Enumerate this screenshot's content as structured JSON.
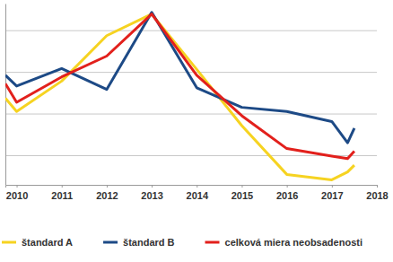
{
  "chart_data": {
    "type": "line",
    "x": [
      2009.75,
      2010,
      2011,
      2012,
      2013,
      2014,
      2015,
      2016,
      2017,
      2017.35,
      2017.5
    ],
    "xlim": [
      2009.75,
      2018
    ],
    "xticks": [
      2010,
      2011,
      2012,
      2013,
      2014,
      2015,
      2016,
      2017,
      2018
    ],
    "ylim": [
      0.3,
      4.65
    ],
    "yticks": [
      1,
      2,
      3,
      4
    ],
    "grid": true,
    "tick_labels": "x",
    "legend": "bottom",
    "series": [
      {
        "name": "štandard A",
        "color": "#f6d321",
        "values": [
          2.38,
          2.06,
          2.79,
          3.88,
          4.4,
          3.07,
          1.72,
          0.55,
          0.42,
          0.61,
          0.77
        ]
      },
      {
        "name": "štandard B",
        "color": "#1d4a86",
        "values": [
          2.93,
          2.67,
          3.09,
          2.59,
          4.44,
          2.63,
          2.16,
          2.06,
          1.82,
          1.31,
          1.66
        ]
      },
      {
        "name": "celková miera neobsadenosti",
        "color": "#e2201c",
        "values": [
          2.73,
          2.28,
          2.89,
          3.39,
          4.4,
          2.93,
          1.96,
          1.17,
          0.99,
          0.93,
          1.11
        ]
      }
    ]
  }
}
